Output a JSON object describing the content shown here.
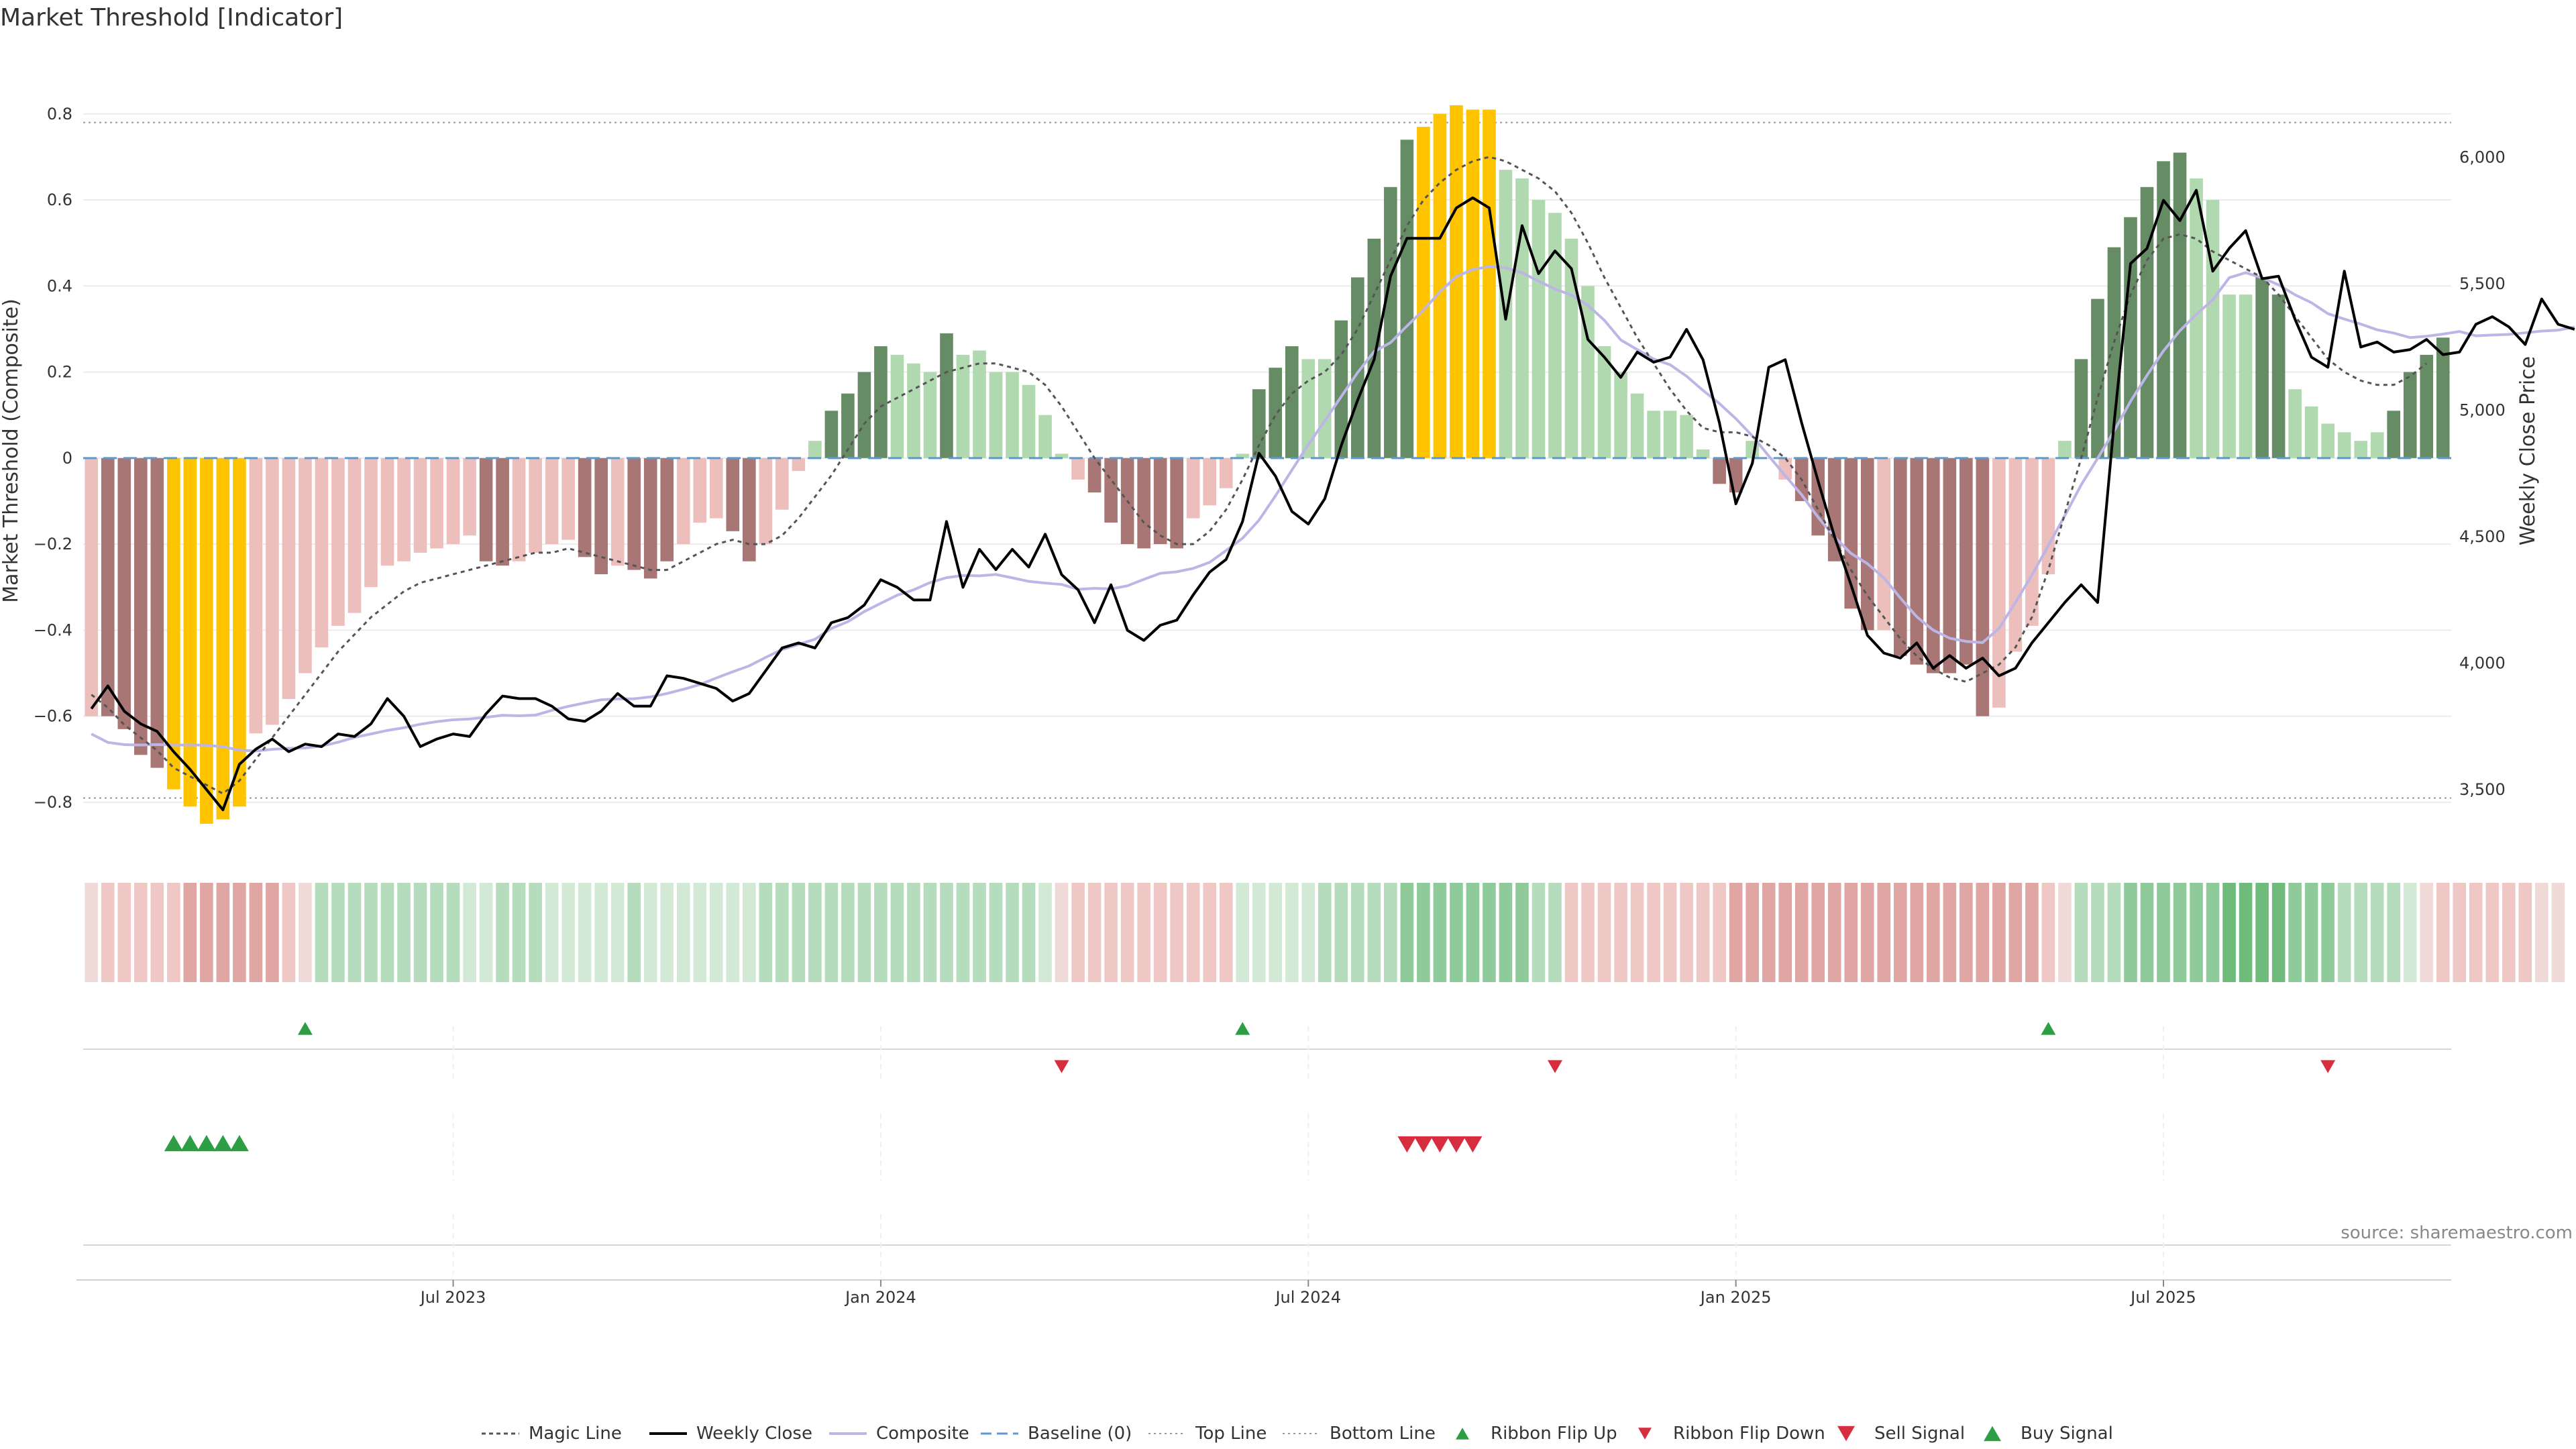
{
  "chart_data": {
    "type": "bar",
    "title": "Market Threshold [Indicator]",
    "ylabel": "Market Threshold (Composite)",
    "y2label": "Weekly Close Price",
    "source": "source: sharemaestro.com",
    "ylim": [
      -0.9,
      0.94
    ],
    "y2lim": [
      3280,
      6410
    ],
    "yticks": [
      {
        "v": 0.8,
        "label": "0.8"
      },
      {
        "v": 0.6,
        "label": "0.6"
      },
      {
        "v": 0.4,
        "label": "0.4"
      },
      {
        "v": 0.2,
        "label": "0.2"
      },
      {
        "v": 0,
        "label": "0"
      },
      {
        "v": -0.2,
        "label": "−0.2"
      },
      {
        "v": -0.4,
        "label": "−0.4"
      },
      {
        "v": -0.6,
        "label": "−0.6"
      },
      {
        "v": -0.8,
        "label": "−0.8"
      }
    ],
    "y2ticks": [
      {
        "v": 6000,
        "label": "6,000"
      },
      {
        "v": 5500,
        "label": "5,500"
      },
      {
        "v": 5000,
        "label": "5,000"
      },
      {
        "v": 4500,
        "label": "4,500"
      },
      {
        "v": 4000,
        "label": "4,000"
      },
      {
        "v": 3500,
        "label": "3,500"
      }
    ],
    "xticks": [
      {
        "i": 22,
        "label": "Jul 2023"
      },
      {
        "i": 48,
        "label": "Jan 2024"
      },
      {
        "i": 74,
        "label": "Jul 2024"
      },
      {
        "i": 100,
        "label": "Jan 2025"
      },
      {
        "i": 126,
        "label": "Jul 2025"
      }
    ],
    "top_line": 0.78,
    "bottom_line": -0.79,
    "baseline": 0,
    "colors": {
      "strong_neg": "#a87674",
      "weak_neg": "#ecbebc",
      "extreme": "#ffc400",
      "strong_pos": "#668c66",
      "weak_pos": "#b0d9b0",
      "magic": "#555555",
      "close": "#000000",
      "composite": "#bdb5e6",
      "baseline": "#5a9ad0",
      "buy": "#2e9e44",
      "sell": "#d62e3f"
    },
    "composite_bars": [
      -0.6,
      -0.6,
      -0.63,
      -0.69,
      -0.72,
      -0.77,
      -0.81,
      -0.85,
      -0.84,
      -0.81,
      -0.64,
      -0.62,
      -0.56,
      -0.5,
      -0.44,
      -0.39,
      -0.36,
      -0.3,
      -0.25,
      -0.24,
      -0.22,
      -0.21,
      -0.2,
      -0.18,
      -0.24,
      -0.25,
      -0.24,
      -0.22,
      -0.2,
      -0.19,
      -0.23,
      -0.27,
      -0.25,
      -0.26,
      -0.28,
      -0.24,
      -0.2,
      -0.15,
      -0.14,
      -0.17,
      -0.24,
      -0.2,
      -0.12,
      -0.03,
      0.04,
      0.11,
      0.15,
      0.2,
      0.26,
      0.24,
      0.22,
      0.2,
      0.29,
      0.24,
      0.25,
      0.2,
      0.2,
      0.17,
      0.1,
      0.01,
      -0.05,
      -0.08,
      -0.15,
      -0.2,
      -0.21,
      -0.2,
      -0.21,
      -0.14,
      -0.11,
      -0.07,
      0.01,
      0.16,
      0.21,
      0.26,
      0.23,
      0.23,
      0.32,
      0.42,
      0.51,
      0.63,
      0.74,
      0.77,
      0.8,
      0.82,
      0.81,
      0.81,
      0.67,
      0.65,
      0.6,
      0.57,
      0.51,
      0.4,
      0.26,
      0.2,
      0.15,
      0.11,
      0.11,
      0.1,
      0.02,
      -0.06,
      -0.08,
      0.04,
      0.0,
      -0.05,
      -0.1,
      -0.18,
      -0.24,
      -0.35,
      -0.4,
      -0.4,
      -0.46,
      -0.48,
      -0.5,
      -0.5,
      -0.48,
      -0.6,
      -0.58,
      -0.45,
      -0.39,
      -0.27,
      0.04,
      0.23,
      0.37,
      0.49,
      0.56,
      0.63,
      0.69,
      0.71,
      0.65,
      0.6,
      0.38,
      0.38,
      0.42,
      0.38,
      0.16,
      0.12,
      0.08,
      0.06,
      0.04,
      0.06,
      0.11,
      0.2,
      0.24,
      0.28
    ],
    "bar_class": [
      "weak_neg",
      "strong_neg",
      "strong_neg",
      "strong_neg",
      "strong_neg",
      "extreme",
      "extreme",
      "extreme",
      "extreme",
      "extreme",
      "weak_neg",
      "weak_neg",
      "weak_neg",
      "weak_neg",
      "weak_neg",
      "weak_neg",
      "weak_neg",
      "weak_neg",
      "weak_neg",
      "weak_neg",
      "weak_neg",
      "weak_neg",
      "weak_neg",
      "weak_neg",
      "strong_neg",
      "strong_neg",
      "weak_neg",
      "weak_neg",
      "weak_neg",
      "weak_neg",
      "strong_neg",
      "strong_neg",
      "weak_neg",
      "strong_neg",
      "strong_neg",
      "strong_neg",
      "weak_neg",
      "weak_neg",
      "weak_neg",
      "strong_neg",
      "strong_neg",
      "weak_neg",
      "weak_neg",
      "weak_neg",
      "weak_pos",
      "strong_pos",
      "strong_pos",
      "strong_pos",
      "strong_pos",
      "weak_pos",
      "weak_pos",
      "weak_pos",
      "strong_pos",
      "weak_pos",
      "weak_pos",
      "weak_pos",
      "weak_pos",
      "weak_pos",
      "weak_pos",
      "weak_pos",
      "weak_neg",
      "strong_neg",
      "strong_neg",
      "strong_neg",
      "strong_neg",
      "strong_neg",
      "strong_neg",
      "weak_neg",
      "weak_neg",
      "weak_neg",
      "weak_pos",
      "strong_pos",
      "strong_pos",
      "strong_pos",
      "weak_pos",
      "weak_pos",
      "strong_pos",
      "strong_pos",
      "strong_pos",
      "strong_pos",
      "strong_pos",
      "extreme",
      "extreme",
      "extreme",
      "extreme",
      "extreme",
      "weak_pos",
      "weak_pos",
      "weak_pos",
      "weak_pos",
      "weak_pos",
      "weak_pos",
      "weak_pos",
      "weak_pos",
      "weak_pos",
      "weak_pos",
      "weak_pos",
      "weak_pos",
      "weak_pos",
      "strong_neg",
      "strong_neg",
      "weak_pos",
      "weak_pos",
      "weak_neg",
      "strong_neg",
      "strong_neg",
      "strong_neg",
      "strong_neg",
      "strong_neg",
      "weak_neg",
      "strong_neg",
      "strong_neg",
      "strong_neg",
      "strong_neg",
      "strong_neg",
      "strong_neg",
      "weak_neg",
      "weak_neg",
      "weak_neg",
      "weak_neg",
      "weak_pos",
      "strong_pos",
      "strong_pos",
      "strong_pos",
      "strong_pos",
      "strong_pos",
      "strong_pos",
      "strong_pos",
      "weak_pos",
      "weak_pos",
      "weak_pos",
      "weak_pos",
      "strong_pos",
      "strong_pos",
      "weak_pos",
      "weak_pos",
      "weak_pos",
      "weak_pos",
      "weak_pos",
      "weak_pos",
      "strong_pos",
      "strong_pos",
      "strong_pos",
      "strong_pos"
    ],
    "magic_line": [
      -0.55,
      -0.58,
      -0.62,
      -0.65,
      -0.68,
      -0.72,
      -0.74,
      -0.76,
      -0.78,
      -0.75,
      -0.7,
      -0.65,
      -0.6,
      -0.55,
      -0.5,
      -0.45,
      -0.41,
      -0.37,
      -0.34,
      -0.31,
      -0.29,
      -0.28,
      -0.27,
      -0.26,
      -0.25,
      -0.24,
      -0.23,
      -0.22,
      -0.22,
      -0.21,
      -0.22,
      -0.23,
      -0.24,
      -0.25,
      -0.26,
      -0.26,
      -0.24,
      -0.22,
      -0.2,
      -0.19,
      -0.2,
      -0.2,
      -0.18,
      -0.14,
      -0.09,
      -0.04,
      0.02,
      0.08,
      0.12,
      0.14,
      0.16,
      0.18,
      0.2,
      0.21,
      0.22,
      0.22,
      0.21,
      0.2,
      0.17,
      0.12,
      0.06,
      0.0,
      -0.05,
      -0.1,
      -0.15,
      -0.18,
      -0.2,
      -0.2,
      -0.17,
      -0.12,
      -0.05,
      0.03,
      0.1,
      0.15,
      0.18,
      0.2,
      0.24,
      0.3,
      0.38,
      0.46,
      0.54,
      0.6,
      0.64,
      0.67,
      0.69,
      0.7,
      0.69,
      0.67,
      0.65,
      0.62,
      0.57,
      0.5,
      0.42,
      0.35,
      0.28,
      0.22,
      0.16,
      0.11,
      0.07,
      0.06,
      0.06,
      0.05,
      0.03,
      0.0,
      -0.05,
      -0.12,
      -0.19,
      -0.26,
      -0.32,
      -0.37,
      -0.42,
      -0.46,
      -0.49,
      -0.51,
      -0.52,
      -0.5,
      -0.48,
      -0.44,
      -0.37,
      -0.26,
      -0.13,
      0.0,
      0.14,
      0.27,
      0.38,
      0.46,
      0.51,
      0.52,
      0.51,
      0.48,
      0.46,
      0.44,
      0.42,
      0.38,
      0.33,
      0.28,
      0.23,
      0.2,
      0.18,
      0.17,
      0.17,
      0.19,
      0.22
    ],
    "weekly_close": [
      3820,
      3910,
      3810,
      3760,
      3730,
      3650,
      3580,
      3500,
      3420,
      3600,
      3660,
      3700,
      3650,
      3680,
      3670,
      3720,
      3710,
      3760,
      3860,
      3790,
      3670,
      3700,
      3720,
      3710,
      3800,
      3870,
      3860,
      3860,
      3830,
      3780,
      3770,
      3810,
      3880,
      3830,
      3830,
      3950,
      3940,
      3920,
      3900,
      3850,
      3880,
      3970,
      4060,
      4080,
      4060,
      4160,
      4180,
      4230,
      4330,
      4300,
      4250,
      4250,
      4560,
      4300,
      4450,
      4370,
      4450,
      4380,
      4510,
      4350,
      4290,
      4160,
      4310,
      4130,
      4090,
      4150,
      4170,
      4270,
      4360,
      4410,
      4560,
      4830,
      4740,
      4600,
      4550,
      4650,
      4860,
      5040,
      5200,
      5530,
      5680,
      5680,
      5680,
      5800,
      5840,
      5800,
      5360,
      5730,
      5540,
      5630,
      5560,
      5280,
      5210,
      5130,
      5230,
      5190,
      5210,
      5320,
      5200,
      4950,
      4630,
      4790,
      5170,
      5200,
      4950,
      4720,
      4500,
      4310,
      4110,
      4040,
      4020,
      4080,
      3980,
      4030,
      3980,
      4020,
      3950,
      3980,
      4080,
      4160,
      4240,
      4310,
      4240,
      4950,
      5580,
      5640,
      5830,
      5750,
      5870,
      5550,
      5640,
      5710,
      5520,
      5530,
      5360,
      5210,
      5170,
      5550,
      5250,
      5270,
      5230,
      5240,
      5280,
      5220,
      5230,
      5340,
      5370,
      5330,
      5260,
      5440,
      5340,
      5320
    ]
  },
  "ribbon": {
    "name": "ribbon-strength",
    "colors": [
      "#f0dad8",
      "#efc8c6",
      "#e0a6a3",
      "#d08d8b",
      "#d2e9d5",
      "#b5dcbc",
      "#8fcb9a",
      "#6fbb7c",
      "#4aa75e"
    ],
    "levels": [
      -1,
      -2,
      -2,
      -2,
      -2,
      -2,
      -3,
      -3,
      -3,
      -3,
      -3,
      -3,
      -2,
      -1,
      2,
      2,
      2,
      2,
      2,
      2,
      2,
      2,
      2,
      1,
      1,
      2,
      2,
      2,
      1,
      1,
      1,
      1,
      1,
      2,
      1,
      1,
      1,
      1,
      1,
      1,
      1,
      2,
      2,
      2,
      2,
      2,
      2,
      2,
      2,
      2,
      2,
      2,
      2,
      2,
      2,
      2,
      2,
      2,
      1,
      -1,
      -2,
      -2,
      -2,
      -2,
      -2,
      -2,
      -2,
      -2,
      -2,
      -2,
      1,
      1,
      1,
      1,
      1,
      2,
      2,
      2,
      2,
      2,
      3,
      3,
      3,
      3,
      3,
      3,
      3,
      3,
      2,
      2,
      -2,
      -2,
      -2,
      -2,
      -2,
      -2,
      -2,
      -2,
      -2,
      -2,
      -3,
      -3,
      -3,
      -3,
      -3,
      -3,
      -3,
      -3,
      -3,
      -3,
      -3,
      -3,
      -3,
      -3,
      -3,
      -3,
      -3,
      -3,
      -3,
      -2,
      -1,
      2,
      2,
      2,
      3,
      3,
      3,
      3,
      3,
      3,
      4,
      4,
      4,
      4,
      3,
      3,
      3,
      2,
      2,
      2,
      2,
      1,
      -1,
      -2,
      -2,
      -2,
      -2,
      -2,
      -2,
      -1,
      -1
    ]
  },
  "signals": {
    "ribbon_flip_up": [
      13,
      70,
      119
    ],
    "ribbon_flip_down": [
      59,
      89,
      136
    ],
    "buy_signal": [
      5,
      6,
      7,
      8,
      9
    ],
    "sell_signal": [
      80,
      81,
      82,
      83,
      84
    ]
  },
  "legend": [
    {
      "key": "magic",
      "label": "Magic Line",
      "kind": "dotted"
    },
    {
      "key": "close",
      "label": "Weekly Close",
      "kind": "solid"
    },
    {
      "key": "composite",
      "label": "Composite",
      "kind": "composite"
    },
    {
      "key": "baseline",
      "label": "Baseline (0)",
      "kind": "dashed"
    },
    {
      "key": "top",
      "label": "Top Line",
      "kind": "dotted-light"
    },
    {
      "key": "bottom",
      "label": "Bottom Line",
      "kind": "dotted-light"
    },
    {
      "key": "flip_up",
      "label": "Ribbon Flip Up",
      "kind": "tri-up-small"
    },
    {
      "key": "flip_down",
      "label": "Ribbon Flip Down",
      "kind": "tri-down-small"
    },
    {
      "key": "sell",
      "label": "Sell Signal",
      "kind": "tri-down"
    },
    {
      "key": "buy",
      "label": "Buy Signal",
      "kind": "tri-up"
    }
  ]
}
